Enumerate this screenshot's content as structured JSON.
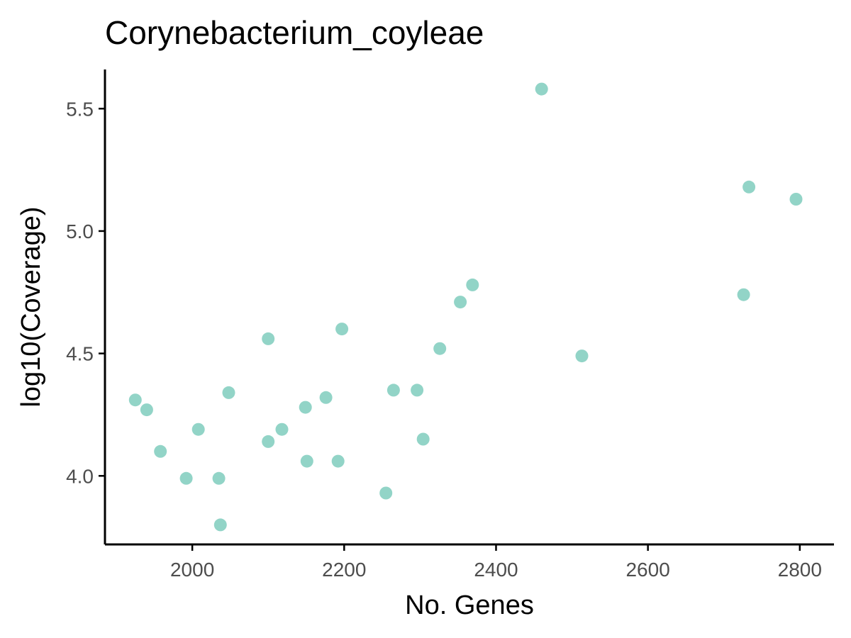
{
  "chart_data": {
    "type": "scatter",
    "title": "Corynebacterium_coyleae",
    "xlabel": "No. Genes",
    "ylabel": "log10(Coverage)",
    "xlim": [
      1885,
      2845
    ],
    "ylim": [
      3.72,
      5.66
    ],
    "xticks": [
      2000,
      2200,
      2400,
      2600,
      2800
    ],
    "yticks": [
      4.0,
      4.5,
      5.0,
      5.5
    ],
    "xtick_labels": [
      "2000",
      "2200",
      "2400",
      "2600",
      "2800"
    ],
    "ytick_labels": [
      "4.0",
      "4.5",
      "5.0",
      "5.5"
    ],
    "point_color": "#92D4C7",
    "grid": false,
    "legend": "none",
    "points": [
      {
        "x": 1925,
        "y": 4.31
      },
      {
        "x": 1940,
        "y": 4.27
      },
      {
        "x": 1958,
        "y": 4.1
      },
      {
        "x": 1992,
        "y": 3.99
      },
      {
        "x": 2008,
        "y": 4.19
      },
      {
        "x": 2035,
        "y": 3.99
      },
      {
        "x": 2037,
        "y": 3.8
      },
      {
        "x": 2048,
        "y": 4.34
      },
      {
        "x": 2100,
        "y": 4.56
      },
      {
        "x": 2100,
        "y": 4.14
      },
      {
        "x": 2118,
        "y": 4.19
      },
      {
        "x": 2149,
        "y": 4.28
      },
      {
        "x": 2151,
        "y": 4.06
      },
      {
        "x": 2176,
        "y": 4.32
      },
      {
        "x": 2192,
        "y": 4.06
      },
      {
        "x": 2197,
        "y": 4.6
      },
      {
        "x": 2255,
        "y": 3.93
      },
      {
        "x": 2265,
        "y": 4.35
      },
      {
        "x": 2296,
        "y": 4.35
      },
      {
        "x": 2304,
        "y": 4.15
      },
      {
        "x": 2326,
        "y": 4.52
      },
      {
        "x": 2353,
        "y": 4.71
      },
      {
        "x": 2369,
        "y": 4.78
      },
      {
        "x": 2460,
        "y": 5.58
      },
      {
        "x": 2513,
        "y": 4.49
      },
      {
        "x": 2726,
        "y": 4.74
      },
      {
        "x": 2733,
        "y": 5.18
      },
      {
        "x": 2795,
        "y": 5.13
      }
    ]
  }
}
